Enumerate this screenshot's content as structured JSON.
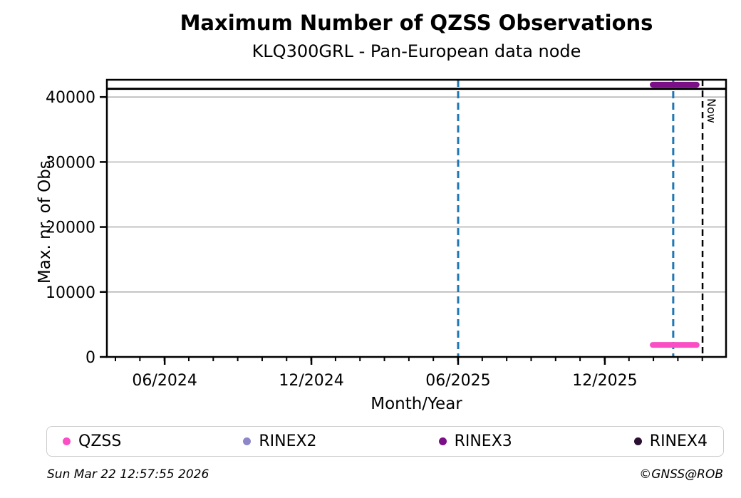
{
  "title": "Maximum Number of QZSS Observations",
  "subtitle": "KLQ300GRL - Pan-European data node",
  "footer": {
    "timestamp": "Sun Mar 22 12:57:55 2026",
    "credit": "©GNSS@ROB"
  },
  "legend": {
    "items": [
      {
        "label": "QZSS",
        "color": "#fa4fc4"
      },
      {
        "label": "RINEX2",
        "color": "#8d87ca"
      },
      {
        "label": "RINEX3",
        "color": "#7b0f87"
      },
      {
        "label": "RINEX4",
        "color": "#2c1033"
      }
    ]
  },
  "chart_data": {
    "type": "line",
    "title": "Maximum Number of QZSS Observations",
    "subtitle": "KLQ300GRL - Pan-European data node",
    "xlabel": "Month/Year",
    "ylabel": "Max. nr. of Obs.",
    "x_axis": {
      "unit": "decimal_year",
      "min": 2024.22,
      "max": 2026.33,
      "major_ticks": [
        {
          "value": 2024.417,
          "label": "06/2024"
        },
        {
          "value": 2024.917,
          "label": "12/2024"
        },
        {
          "value": 2025.417,
          "label": "06/2025"
        },
        {
          "value": 2025.917,
          "label": "12/2025"
        }
      ],
      "minor_tick_interval": 0.0833333
    },
    "y_axis": {
      "min": 0,
      "max": 42650,
      "ticks": [
        {
          "value": 0,
          "label": "0"
        },
        {
          "value": 10000,
          "label": "10000"
        },
        {
          "value": 20000,
          "label": "20000"
        },
        {
          "value": 30000,
          "label": "30000"
        },
        {
          "value": 40000,
          "label": "40000"
        }
      ],
      "grid": true,
      "grid_color": "#b4b4b4"
    },
    "series": [
      {
        "name": "QZSS",
        "color": "#fa4fc4",
        "line_width": 8,
        "points": [
          {
            "x": 2026.08,
            "y": 1850
          },
          {
            "x": 2026.23,
            "y": 1850
          }
        ]
      },
      {
        "name": "RINEX2",
        "color": "#8d87ca",
        "line_width": 8,
        "points": []
      },
      {
        "name": "RINEX3",
        "color": "#7b0f87",
        "line_width": 8,
        "points": [
          {
            "x": 2026.08,
            "y": 41900
          },
          {
            "x": 2026.23,
            "y": 41900
          }
        ]
      },
      {
        "name": "RINEX4",
        "color": "#2c1033",
        "line_width": 8,
        "points": []
      }
    ],
    "reference_lines": [
      {
        "name": "max-observations-line",
        "value": 41260,
        "color": "#000000",
        "width": 3
      }
    ],
    "vertical_lines": [
      {
        "name": "event-line-1",
        "x": 2025.417,
        "color": "#1f77b4",
        "dash": "10,6",
        "width": 3,
        "label": ""
      },
      {
        "name": "event-line-2",
        "x": 2026.15,
        "color": "#1f77b4",
        "dash": "10,6",
        "width": 3,
        "label": ""
      },
      {
        "name": "now-line",
        "x": 2026.25,
        "color": "#000000",
        "dash": "9,6",
        "width": 2.5,
        "label": "Now"
      }
    ],
    "legend_entries": [
      "QZSS",
      "RINEX2",
      "RINEX3",
      "RINEX4"
    ],
    "legend_position": "bottom"
  }
}
